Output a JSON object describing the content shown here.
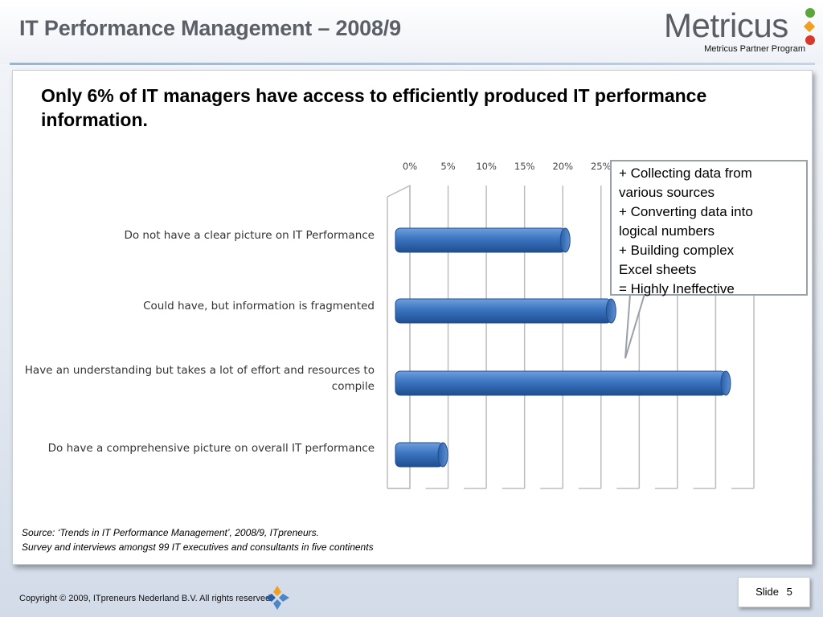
{
  "header": {
    "title": "IT Performance Management – 2008/9",
    "logo_text": "Metricus",
    "logo_subtitle": "Metricus Partner Program"
  },
  "headline": "Only 6% of IT managers have access to efficiently produced IT performance information.",
  "chart_data": {
    "type": "bar",
    "orientation": "horizontal",
    "title": "",
    "xlabel": "",
    "ylabel": "",
    "x_ticks": [
      "0%",
      "5%",
      "10%",
      "15%",
      "20%",
      "25%"
    ],
    "xlim": [
      0,
      45
    ],
    "grid": true,
    "categories": [
      "Do not have a clear picture on IT Performance",
      "Could have, but information is fragmented",
      "Have an understanding but takes a lot of effort and resources to compile",
      "Do have a comprehensive picture on overall IT performance"
    ],
    "values": [
      22,
      28,
      43,
      6
    ],
    "bar_color": "#3b74c0"
  },
  "callout": {
    "lines": [
      "+   Collecting data from",
      "various sources",
      "+   Converting data into",
      "logical numbers",
      "+   Building complex",
      "Excel sheets",
      "=   Highly Ineffective"
    ]
  },
  "source": {
    "line1": "Source: ‘Trends in IT Performance Management’, 2008/9, ITpreneurs.",
    "line2": "Survey and interviews amongst 99 IT executives and consultants in five continents"
  },
  "footer": {
    "copyright": "Copyright © 2009, ITpreneurs Nederland B.V. All rights reserved.",
    "slide_label": "Slide",
    "slide_number": "5"
  }
}
